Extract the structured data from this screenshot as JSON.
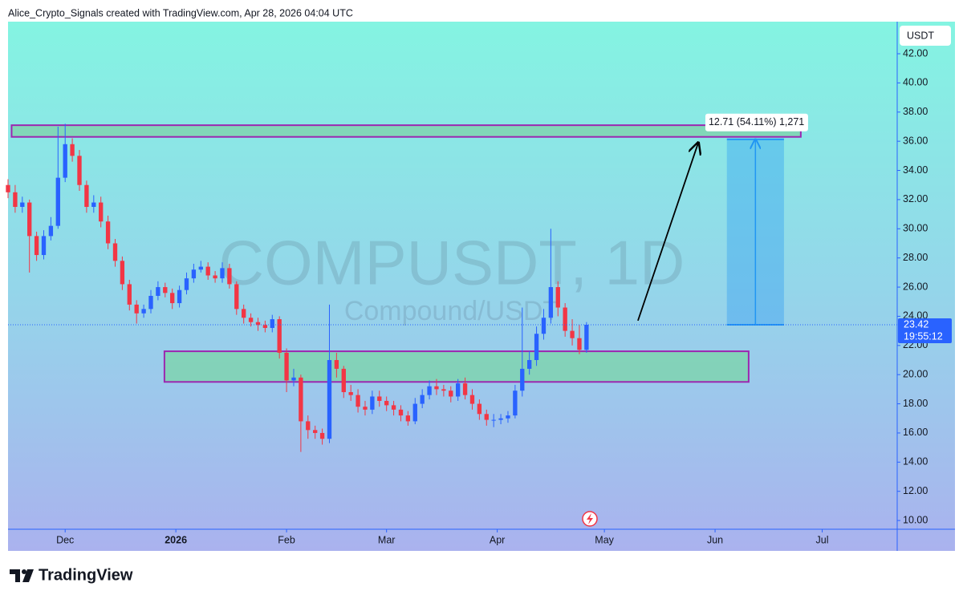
{
  "chart_data": {
    "type": "candlestick",
    "header": "Alice_Crypto_Signals created with TradingView.com, Apr 28, 2026 04:04 UTC",
    "title": "COMPUSDT, 1D",
    "subtitle": "Compound/USDT",
    "currency": "USDT",
    "brand": "TradingView",
    "x": [
      0,
      2,
      4,
      6,
      8,
      10,
      12,
      14,
      16,
      18,
      20,
      22,
      24,
      26,
      28,
      30,
      32,
      34,
      36,
      38,
      40,
      42,
      44,
      46,
      48,
      50,
      52,
      54,
      56,
      58,
      60,
      62,
      64,
      66,
      68,
      70,
      72,
      74,
      76,
      78,
      80,
      82,
      84,
      86,
      88,
      90,
      92,
      94,
      96,
      98,
      100,
      102,
      104,
      106,
      108,
      110,
      112,
      114,
      116,
      118,
      120,
      122,
      124,
      126,
      128,
      130,
      132,
      134,
      136,
      138,
      140,
      142,
      144,
      146,
      148,
      150,
      152,
      154,
      156,
      158,
      160,
      162
    ],
    "open": [
      33.0,
      32.5,
      31.5,
      31.8,
      29.5,
      28.2,
      29.5,
      30.2,
      33.5,
      35.8,
      35.0,
      33.0,
      31.5,
      31.8,
      30.5,
      29.0,
      27.8,
      26.2,
      24.8,
      24.2,
      24.5,
      25.4,
      26.0,
      25.6,
      24.9,
      25.8,
      26.6,
      27.2,
      27.4,
      26.8,
      26.6,
      27.3,
      26.2,
      24.5,
      23.9,
      23.6,
      23.4,
      23.2,
      23.8,
      21.5,
      19.6,
      19.8,
      16.8,
      16.2,
      16.0,
      15.6,
      21.0,
      20.4,
      18.8,
      18.6,
      17.8,
      17.6,
      18.5,
      18.2,
      17.9,
      17.6,
      17.2,
      16.8,
      18.0,
      18.6,
      19.2,
      19.0,
      18.9,
      18.5,
      19.4,
      18.6,
      18.0,
      17.3,
      16.9,
      16.9,
      17.0,
      17.2,
      18.9,
      20.4,
      21.0,
      22.8,
      23.9,
      26.0,
      24.6,
      23.0,
      22.5,
      21.7
    ],
    "high": [
      33.4,
      33.0,
      32.2,
      32.0,
      29.8,
      29.9,
      30.8,
      37.0,
      37.2,
      36.2,
      35.4,
      33.3,
      32.3,
      32.2,
      30.9,
      29.3,
      28.1,
      26.5,
      25.1,
      24.8,
      25.8,
      26.4,
      26.3,
      25.9,
      26.1,
      27.0,
      27.6,
      27.8,
      27.7,
      27.1,
      27.7,
      27.6,
      26.4,
      24.8,
      24.2,
      23.9,
      23.7,
      24.1,
      24.0,
      21.8,
      20.4,
      20.0,
      17.2,
      16.5,
      16.3,
      24.8,
      21.5,
      20.6,
      19.3,
      19.0,
      18.2,
      18.9,
      18.9,
      18.5,
      18.2,
      17.9,
      17.5,
      18.4,
      19.0,
      19.6,
      19.7,
      19.3,
      19.2,
      19.7,
      19.8,
      19.0,
      18.3,
      17.6,
      17.3,
      17.3,
      17.5,
      19.3,
      24.6,
      21.6,
      23.3,
      24.5,
      30.0,
      26.4,
      24.9,
      23.8,
      23.4,
      23.6
    ],
    "low": [
      32.1,
      31.1,
      31.1,
      27.0,
      27.8,
      27.9,
      29.2,
      30.0,
      33.2,
      34.6,
      32.6,
      31.1,
      31.1,
      30.1,
      28.6,
      27.4,
      25.8,
      24.4,
      23.5,
      23.9,
      24.2,
      25.1,
      25.3,
      24.5,
      24.6,
      25.5,
      26.3,
      27.0,
      26.5,
      26.3,
      26.3,
      25.9,
      24.1,
      23.5,
      23.3,
      23.0,
      22.9,
      22.9,
      21.1,
      18.8,
      19.2,
      14.7,
      15.6,
      15.6,
      15.2,
      15.3,
      19.8,
      18.4,
      18.2,
      17.4,
      17.2,
      17.3,
      17.8,
      17.5,
      17.2,
      16.8,
      16.5,
      16.6,
      17.7,
      18.3,
      18.6,
      18.5,
      18.1,
      18.2,
      18.3,
      17.6,
      16.9,
      16.5,
      16.4,
      16.6,
      16.7,
      17.0,
      18.5,
      20.0,
      20.6,
      22.4,
      23.5,
      24.0,
      22.6,
      22.0,
      21.4,
      21.5
    ],
    "close": [
      32.5,
      31.5,
      31.8,
      29.5,
      28.2,
      29.5,
      30.2,
      33.5,
      35.8,
      35.0,
      33.0,
      31.5,
      31.8,
      30.5,
      29.0,
      27.8,
      26.2,
      24.8,
      24.2,
      24.5,
      25.4,
      26.0,
      25.6,
      24.9,
      25.8,
      26.6,
      27.2,
      27.4,
      26.8,
      26.6,
      27.3,
      26.2,
      24.5,
      23.9,
      23.6,
      23.4,
      23.2,
      23.8,
      21.5,
      19.6,
      19.8,
      16.8,
      16.2,
      16.0,
      15.6,
      21.0,
      20.4,
      18.8,
      18.6,
      17.8,
      17.6,
      18.5,
      18.2,
      17.9,
      17.6,
      17.2,
      16.8,
      18.0,
      18.6,
      19.2,
      19.0,
      18.9,
      18.5,
      19.4,
      18.6,
      18.0,
      17.3,
      16.9,
      16.9,
      17.0,
      17.2,
      18.9,
      20.4,
      21.0,
      22.8,
      23.9,
      26.0,
      24.6,
      23.0,
      22.5,
      21.7,
      23.42
    ],
    "up_color": "#2962ff",
    "down_color": "#f23645",
    "xlim": [
      0,
      249
    ],
    "ylim": [
      9.4,
      44.2
    ],
    "xticks": [
      {
        "value": 16,
        "label": "Dec"
      },
      {
        "value": 47,
        "label": "2026"
      },
      {
        "value": 78,
        "label": "Feb"
      },
      {
        "value": 106,
        "label": "Mar"
      },
      {
        "value": 137,
        "label": "Apr"
      },
      {
        "value": 167,
        "label": "May"
      },
      {
        "value": 198,
        "label": "Jun"
      },
      {
        "value": 228,
        "label": "Jul"
      }
    ],
    "yticks": [
      {
        "value": 10,
        "label": "10.00"
      },
      {
        "value": 12,
        "label": "12.00"
      },
      {
        "value": 14,
        "label": "14.00"
      },
      {
        "value": 16,
        "label": "16.00"
      },
      {
        "value": 18,
        "label": "18.00"
      },
      {
        "value": 20,
        "label": "20.00"
      },
      {
        "value": 22,
        "label": "22.00"
      },
      {
        "value": 24,
        "label": "24.00"
      },
      {
        "value": 26,
        "label": "26.00"
      },
      {
        "value": 28,
        "label": "28.00"
      },
      {
        "value": 30,
        "label": "30.00"
      },
      {
        "value": 32,
        "label": "32.00"
      },
      {
        "value": 34,
        "label": "34.00"
      },
      {
        "value": 36,
        "label": "36.00"
      },
      {
        "value": 38,
        "label": "38.00"
      },
      {
        "value": 40,
        "label": "40.00"
      },
      {
        "value": 42,
        "label": "42.00"
      }
    ],
    "zones": [
      {
        "xlim": [
          1,
          222
        ],
        "ylim": [
          36.3,
          37.1
        ]
      },
      {
        "xlim": [
          43.8,
          207.4
        ],
        "ylim": [
          19.5,
          21.6
        ]
      }
    ],
    "zone_color": "#7fd4b0",
    "zone_border": "#9c27b0",
    "projection": {
      "xlim": [
        201.3,
        217.3
      ],
      "ylim": [
        23.42,
        36.13
      ],
      "label": "12.71 (54.11%) 1,271",
      "color": "#2196f3"
    },
    "arrow": {
      "x": [
        176.4,
        193.3
      ],
      "y": [
        23.7,
        35.9
      ]
    },
    "countdown": "19:55:12"
  }
}
